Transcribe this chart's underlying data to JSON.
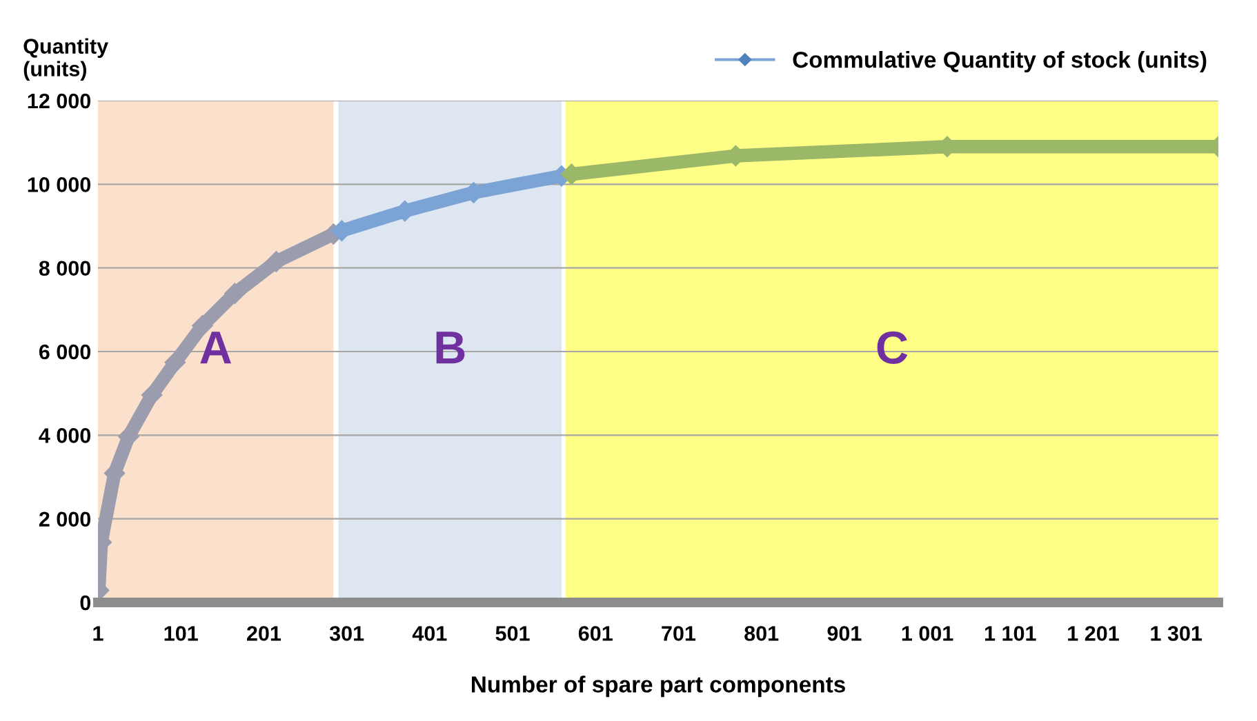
{
  "chart_data": {
    "type": "line",
    "xlabel": "Number of spare part components",
    "ylabel": "Quantity\n(units)",
    "xlim": [
      1,
      1352
    ],
    "ylim": [
      0,
      12000
    ],
    "xticks": [
      1,
      101,
      201,
      301,
      401,
      501,
      601,
      701,
      801,
      901,
      {
        "value": 1001,
        "label": "1 001"
      },
      {
        "value": 1101,
        "label": "1 101"
      },
      {
        "value": 1201,
        "label": "1 201"
      },
      {
        "value": 1301,
        "label": "1 301"
      }
    ],
    "yticks": [
      0,
      {
        "value": 2000,
        "label": "2 000"
      },
      {
        "value": 4000,
        "label": "4 000"
      },
      {
        "value": 6000,
        "label": "6 000"
      },
      {
        "value": 8000,
        "label": "8 000"
      },
      {
        "value": 10000,
        "label": "10 000"
      },
      {
        "value": 12000,
        "label": "12 000"
      }
    ],
    "grid": "y",
    "legend": "top right",
    "marker": "diamond",
    "line_style": "solid",
    "bands": [
      {
        "axis": "x",
        "from": 1,
        "to": 285,
        "label": "A",
        "color": "#fbe1cb"
      },
      {
        "axis": "x",
        "from": 291,
        "to": 560,
        "label": "B",
        "color": "#dde6f1"
      },
      {
        "axis": "x",
        "from": 565,
        "to": 1352,
        "label": "C",
        "color": "#ffff88"
      }
    ],
    "series": [
      {
        "color": "#9b9cae",
        "x": [
          2,
          5,
          21,
          38,
          66,
          94,
          127,
          166,
          216,
          285
        ],
        "values": [
          290,
          1440,
          3090,
          3970,
          4960,
          5740,
          6620,
          7390,
          8150,
          8810
        ]
      },
      {
        "name": "Commulative Quantity of stock (units)",
        "color": "#7ba3d4",
        "x": [
          295,
          371,
          454,
          560
        ],
        "values": [
          8890,
          9360,
          9800,
          10200
        ]
      },
      {
        "color": "#9bb868",
        "x": [
          572,
          770,
          1025,
          1352
        ],
        "values": [
          10240,
          10680,
          10900,
          10900
        ]
      }
    ]
  }
}
